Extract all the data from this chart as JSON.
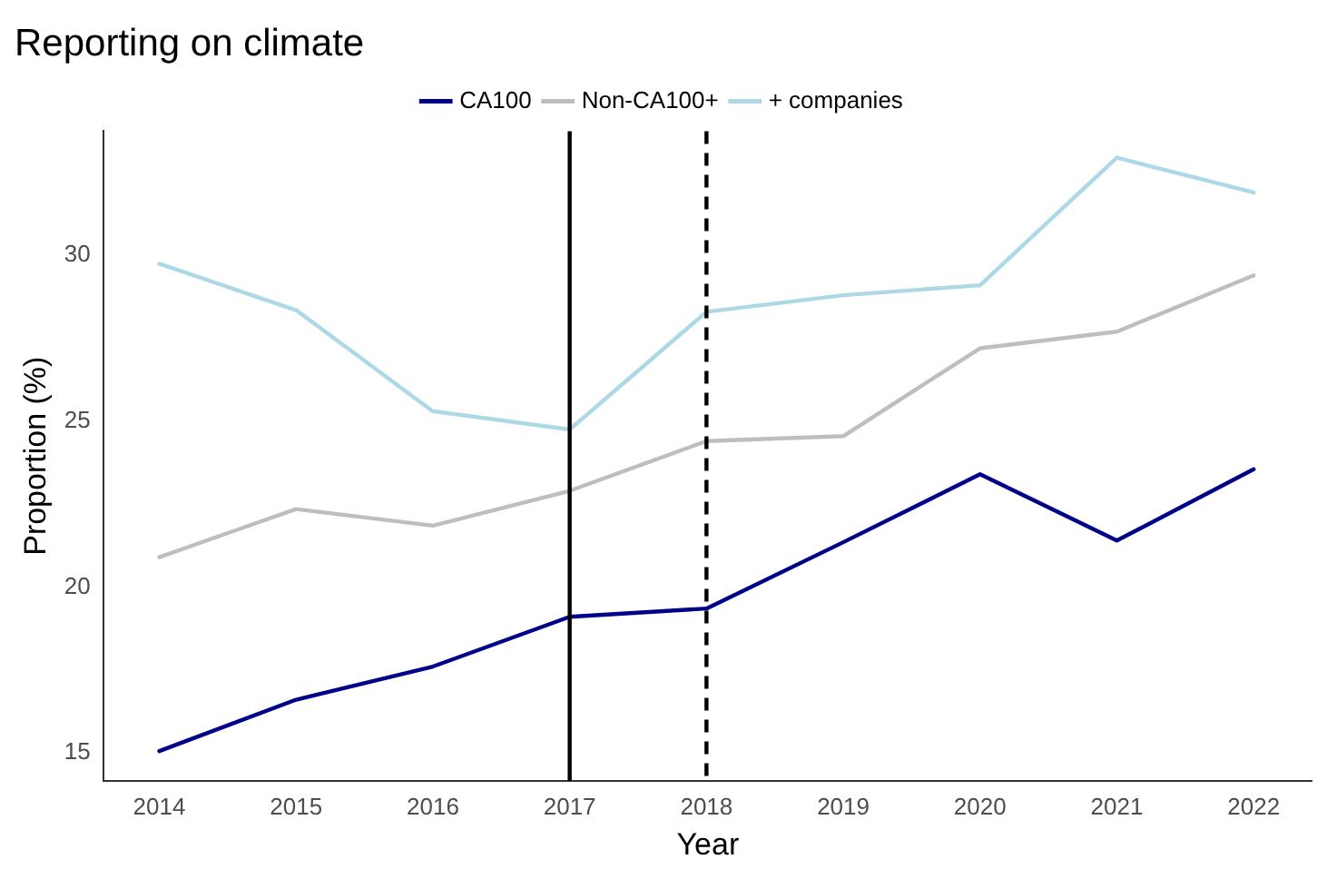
{
  "chart_data": {
    "type": "line",
    "title": "Reporting on climate",
    "xlabel": "Year",
    "ylabel": "Proportion (%)",
    "x": [
      2014,
      2015,
      2016,
      2017,
      2018,
      2019,
      2020,
      2021,
      2022
    ],
    "xlim": [
      2013.59,
      2022.43
    ],
    "xticks": [
      2014,
      2015,
      2016,
      2017,
      2018,
      2019,
      2020,
      2021,
      2022
    ],
    "ylim": [
      14.15,
      33.75
    ],
    "yticks": [
      15,
      20,
      25,
      30
    ],
    "series": [
      {
        "name": "CA100",
        "color": "#00008b",
        "values": [
          15.05,
          16.6,
          17.6,
          19.1,
          19.35,
          21.35,
          23.4,
          21.4,
          23.55
        ]
      },
      {
        "name": "Non-CA100+",
        "color": "#bebebe",
        "values": [
          20.9,
          22.35,
          21.85,
          22.9,
          24.4,
          24.55,
          27.2,
          27.7,
          29.4
        ]
      },
      {
        "name": "+ companies",
        "color": "#add8e6",
        "values": [
          29.75,
          28.35,
          25.3,
          24.75,
          28.3,
          28.8,
          29.1,
          32.95,
          31.9
        ]
      }
    ],
    "ref_lines": [
      {
        "axis": "x",
        "value": 2017,
        "color": "#000000",
        "line_style": "solid"
      },
      {
        "axis": "x",
        "value": 2018,
        "color": "#000000",
        "line_style": "dashed"
      }
    ],
    "grid": false,
    "legend": "top",
    "marker": "none",
    "line_style": "solid"
  }
}
